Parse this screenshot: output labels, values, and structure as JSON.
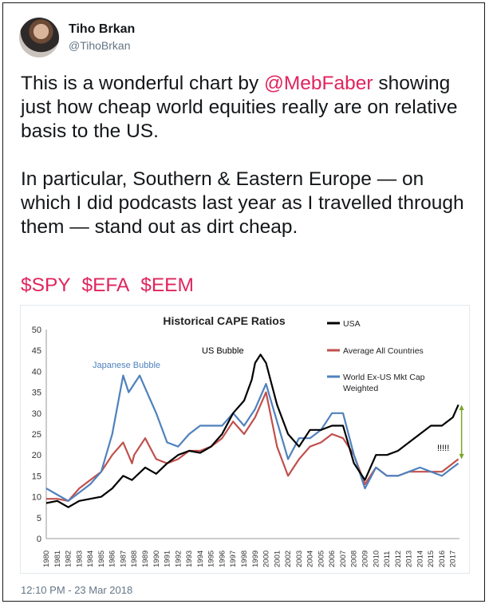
{
  "tweet": {
    "author_name": "Tiho Brkan",
    "author_handle": "@TihoBrkan",
    "para1_pre": "This is a wonderful chart by ",
    "para1_mention": "@MebFaber",
    "para1_post": " showing just how cheap world equities really are on relative basis to the US.",
    "para2": "In particular, Southern & Eastern Europe — on which I did podcasts last year as I travelled through them — stand out as dirt cheap.",
    "cashtags": [
      "$SPY",
      "$EFA",
      "$EEM"
    ],
    "timestamp": "12:10 PM - 23 Mar 2018"
  },
  "chart_data": {
    "type": "line",
    "title": "Historical CAPE Ratios",
    "xlabel": "",
    "ylabel": "",
    "ylim": [
      0,
      50
    ],
    "yticks": [
      0,
      5,
      10,
      15,
      20,
      25,
      30,
      35,
      40,
      45,
      50
    ],
    "xticks": [
      "1980",
      "1981",
      "1982",
      "1983",
      "1984",
      "1985",
      "1986",
      "1987",
      "1988",
      "1989",
      "1990",
      "1991",
      "1992",
      "1993",
      "1994",
      "1995",
      "1996",
      "1997",
      "1998",
      "1999",
      "2000",
      "2001",
      "2002",
      "2003",
      "2004",
      "2005",
      "2006",
      "2007",
      "2008",
      "2009",
      "2010",
      "2011",
      "2012",
      "2013",
      "2014",
      "2015",
      "2016",
      "2017"
    ],
    "legend_position": "top-right",
    "annotations": [
      {
        "text": "Japanese Bubble",
        "color": "#4f81bd"
      },
      {
        "text": "US Bubble",
        "color": "#000000"
      },
      {
        "text": "!!!!!",
        "color": "#000000"
      }
    ],
    "series": [
      {
        "name": "USA",
        "color": "#000000",
        "x": [
          1980,
          1981,
          1982,
          1983,
          1984,
          1985,
          1986,
          1987,
          1987.8,
          1988,
          1989,
          1990,
          1991,
          1992,
          1993,
          1994,
          1995,
          1996,
          1997,
          1998,
          1998.7,
          1999,
          1999.5,
          2000,
          2000.5,
          2001,
          2002,
          2003,
          2004,
          2005,
          2006,
          2007,
          2008,
          2009,
          2010,
          2011,
          2012,
          2013,
          2014,
          2015,
          2016,
          2017,
          2017.5
        ],
        "y": [
          8.5,
          9,
          7.5,
          9,
          9.5,
          10,
          12,
          15,
          14,
          14.5,
          17,
          15.5,
          18,
          20,
          21,
          20.5,
          22,
          25,
          30,
          33,
          38,
          42,
          44,
          42,
          37,
          32,
          25,
          22,
          26,
          26,
          27,
          27,
          18,
          14,
          20,
          20,
          21,
          23,
          25,
          27,
          27,
          29,
          32
        ]
      },
      {
        "name": "Average All Countries",
        "color": "#c0504d",
        "x": [
          1980,
          1981,
          1982,
          1983,
          1984,
          1985,
          1986,
          1987,
          1987.8,
          1988,
          1989,
          1990,
          1991,
          1992,
          1993,
          1994,
          1995,
          1996,
          1997,
          1998,
          1999,
          2000,
          2001,
          2002,
          2003,
          2004,
          2005,
          2006,
          2007,
          2008,
          2009,
          2010,
          2011,
          2012,
          2013,
          2014,
          2015,
          2016,
          2017,
          2017.5
        ],
        "y": [
          9.5,
          9.5,
          9,
          12,
          14,
          16,
          20,
          23,
          18,
          20,
          24,
          19,
          18,
          19,
          21,
          21,
          22,
          24,
          28,
          25,
          29,
          35,
          22,
          15,
          19,
          22,
          23,
          25,
          24,
          20,
          13,
          17,
          15,
          15,
          16,
          16,
          16,
          16,
          18,
          19
        ]
      },
      {
        "name": "World Ex-US Mkt Cap Weighted",
        "color": "#4f81bd",
        "x": [
          1980,
          1981,
          1982,
          1983,
          1984,
          1985,
          1986,
          1987,
          1987.5,
          1988,
          1988.5,
          1989,
          1990,
          1991,
          1992,
          1993,
          1994,
          1995,
          1996,
          1997,
          1998,
          1999,
          2000,
          2001,
          2002,
          2003,
          2004,
          2005,
          2006,
          2007,
          2008,
          2009,
          2010,
          2011,
          2012,
          2013,
          2014,
          2015,
          2016,
          2017,
          2017.5
        ],
        "y": [
          12,
          10.5,
          9,
          11,
          13,
          16,
          25,
          39,
          35,
          37,
          39,
          36,
          30,
          23,
          22,
          25,
          27,
          27,
          27,
          30,
          27,
          31,
          37,
          28,
          19,
          24,
          24,
          26,
          30,
          30,
          20,
          12,
          17,
          15,
          15,
          16,
          17,
          16,
          15,
          17,
          18
        ]
      }
    ]
  }
}
